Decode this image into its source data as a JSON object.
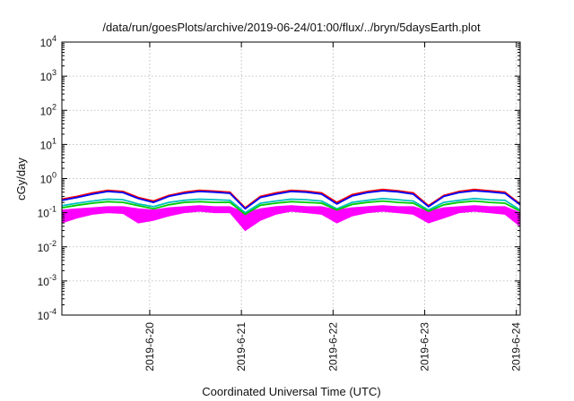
{
  "chart_data": {
    "type": "line",
    "title": "/data/run/goesPlots/archive/2019-06-24/01:00/flux/../bryn/5daysEarth.plot",
    "xlabel": "Coordinated Universal Time (UTC)",
    "ylabel": "cGy/day",
    "yscale": "log",
    "ylim": [
      0.0001,
      10000
    ],
    "xlim": [
      "2019-06-19T01:00",
      "2019-06-24T01:00"
    ],
    "grid": true,
    "legend": "none",
    "x_ticks": [
      {
        "value": "2019-06-20T00:00",
        "label": "2019-6-20"
      },
      {
        "value": "2019-06-21T00:00",
        "label": "2019-6-21"
      },
      {
        "value": "2019-06-22T00:00",
        "label": "2019-6-22"
      },
      {
        "value": "2019-06-23T00:00",
        "label": "2019-6-23"
      },
      {
        "value": "2019-06-24T00:00",
        "label": "2019-6-24"
      }
    ],
    "y_ticks": [
      {
        "value": 0.0001,
        "base": "10",
        "exp": "-4"
      },
      {
        "value": 0.001,
        "base": "10",
        "exp": "-3"
      },
      {
        "value": 0.01,
        "base": "10",
        "exp": "-2"
      },
      {
        "value": 0.1,
        "base": "10",
        "exp": "-1"
      },
      {
        "value": 1,
        "base": "10",
        "exp": "0"
      },
      {
        "value": 10,
        "base": "10",
        "exp": "1"
      },
      {
        "value": 100,
        "base": "10",
        "exp": "2"
      },
      {
        "value": 1000,
        "base": "10",
        "exp": "3"
      },
      {
        "value": 10000,
        "base": "10",
        "exp": "4"
      }
    ],
    "series": [
      {
        "color": "#ff00ff",
        "envelope": true,
        "x": [
          "2019-06-19T01:00",
          "2019-06-19T05:00",
          "2019-06-19T09:00",
          "2019-06-19T13:00",
          "2019-06-19T17:00",
          "2019-06-19T21:00",
          "2019-06-20T01:00",
          "2019-06-20T05:00",
          "2019-06-20T09:00",
          "2019-06-20T13:00",
          "2019-06-20T17:00",
          "2019-06-20T21:00",
          "2019-06-21T01:00",
          "2019-06-21T05:00",
          "2019-06-21T09:00",
          "2019-06-21T13:00",
          "2019-06-21T17:00",
          "2019-06-21T21:00",
          "2019-06-22T01:00",
          "2019-06-22T05:00",
          "2019-06-22T09:00",
          "2019-06-22T13:00",
          "2019-06-22T17:00",
          "2019-06-22T21:00",
          "2019-06-23T01:00",
          "2019-06-23T05:00",
          "2019-06-23T09:00",
          "2019-06-23T13:00",
          "2019-06-23T17:00",
          "2019-06-23T21:00",
          "2019-06-24T01:00"
        ],
        "lo": [
          0.05,
          0.07,
          0.09,
          0.1,
          0.095,
          0.05,
          0.06,
          0.08,
          0.1,
          0.11,
          0.1,
          0.1,
          0.03,
          0.06,
          0.09,
          0.11,
          0.1,
          0.09,
          0.05,
          0.08,
          0.1,
          0.11,
          0.1,
          0.09,
          0.05,
          0.07,
          0.1,
          0.11,
          0.1,
          0.09,
          0.04
        ],
        "hi": [
          0.12,
          0.13,
          0.14,
          0.15,
          0.15,
          0.13,
          0.12,
          0.14,
          0.15,
          0.16,
          0.15,
          0.15,
          0.1,
          0.13,
          0.15,
          0.16,
          0.15,
          0.15,
          0.12,
          0.14,
          0.15,
          0.16,
          0.15,
          0.15,
          0.11,
          0.14,
          0.15,
          0.16,
          0.15,
          0.15,
          0.1
        ]
      },
      {
        "color": "#ff0000",
        "x": [
          "2019-06-19T01:00",
          "2019-06-19T05:00",
          "2019-06-19T09:00",
          "2019-06-19T13:00",
          "2019-06-19T17:00",
          "2019-06-19T21:00",
          "2019-06-20T01:00",
          "2019-06-20T05:00",
          "2019-06-20T09:00",
          "2019-06-20T13:00",
          "2019-06-20T17:00",
          "2019-06-20T21:00",
          "2019-06-21T01:00",
          "2019-06-21T05:00",
          "2019-06-21T09:00",
          "2019-06-21T13:00",
          "2019-06-21T17:00",
          "2019-06-21T21:00",
          "2019-06-22T01:00",
          "2019-06-22T05:00",
          "2019-06-22T09:00",
          "2019-06-22T13:00",
          "2019-06-22T17:00",
          "2019-06-22T21:00",
          "2019-06-23T01:00",
          "2019-06-23T05:00",
          "2019-06-23T09:00",
          "2019-06-23T13:00",
          "2019-06-23T17:00",
          "2019-06-23T21:00",
          "2019-06-24T01:00"
        ],
        "y": [
          0.25,
          0.3,
          0.38,
          0.45,
          0.42,
          0.28,
          0.22,
          0.32,
          0.4,
          0.45,
          0.43,
          0.4,
          0.14,
          0.3,
          0.38,
          0.45,
          0.43,
          0.38,
          0.2,
          0.34,
          0.42,
          0.48,
          0.44,
          0.38,
          0.16,
          0.32,
          0.42,
          0.48,
          0.44,
          0.4,
          0.18
        ]
      },
      {
        "color": "#0000ff",
        "x": [
          "2019-06-19T01:00",
          "2019-06-19T05:00",
          "2019-06-19T09:00",
          "2019-06-19T13:00",
          "2019-06-19T17:00",
          "2019-06-19T21:00",
          "2019-06-20T01:00",
          "2019-06-20T05:00",
          "2019-06-20T09:00",
          "2019-06-20T13:00",
          "2019-06-20T17:00",
          "2019-06-20T21:00",
          "2019-06-21T01:00",
          "2019-06-21T05:00",
          "2019-06-21T09:00",
          "2019-06-21T13:00",
          "2019-06-21T17:00",
          "2019-06-21T21:00",
          "2019-06-22T01:00",
          "2019-06-22T05:00",
          "2019-06-22T09:00",
          "2019-06-22T13:00",
          "2019-06-22T17:00",
          "2019-06-22T21:00",
          "2019-06-23T01:00",
          "2019-06-23T05:00",
          "2019-06-23T09:00",
          "2019-06-23T13:00",
          "2019-06-23T17:00",
          "2019-06-23T21:00",
          "2019-06-24T01:00"
        ],
        "y": [
          0.23,
          0.28,
          0.35,
          0.42,
          0.39,
          0.26,
          0.2,
          0.3,
          0.37,
          0.42,
          0.4,
          0.37,
          0.13,
          0.28,
          0.35,
          0.42,
          0.4,
          0.35,
          0.18,
          0.31,
          0.39,
          0.44,
          0.41,
          0.35,
          0.15,
          0.3,
          0.39,
          0.44,
          0.41,
          0.37,
          0.17
        ]
      },
      {
        "color": "#00c0c0",
        "x": [
          "2019-06-19T01:00",
          "2019-06-19T05:00",
          "2019-06-19T09:00",
          "2019-06-19T13:00",
          "2019-06-19T17:00",
          "2019-06-19T21:00",
          "2019-06-20T01:00",
          "2019-06-20T05:00",
          "2019-06-20T09:00",
          "2019-06-20T13:00",
          "2019-06-20T17:00",
          "2019-06-20T21:00",
          "2019-06-21T01:00",
          "2019-06-21T05:00",
          "2019-06-21T09:00",
          "2019-06-21T13:00",
          "2019-06-21T17:00",
          "2019-06-21T21:00",
          "2019-06-22T01:00",
          "2019-06-22T05:00",
          "2019-06-22T09:00",
          "2019-06-22T13:00",
          "2019-06-22T17:00",
          "2019-06-22T21:00",
          "2019-06-23T01:00",
          "2019-06-23T05:00",
          "2019-06-23T09:00",
          "2019-06-23T13:00",
          "2019-06-23T17:00",
          "2019-06-23T21:00",
          "2019-06-24T01:00"
        ],
        "y": [
          0.16,
          0.19,
          0.22,
          0.25,
          0.24,
          0.18,
          0.15,
          0.2,
          0.23,
          0.25,
          0.24,
          0.23,
          0.1,
          0.19,
          0.22,
          0.25,
          0.24,
          0.22,
          0.13,
          0.2,
          0.23,
          0.26,
          0.24,
          0.22,
          0.12,
          0.2,
          0.23,
          0.26,
          0.24,
          0.23,
          0.12
        ]
      },
      {
        "color": "#00cc00",
        "x": [
          "2019-06-19T01:00",
          "2019-06-19T05:00",
          "2019-06-19T09:00",
          "2019-06-19T13:00",
          "2019-06-19T17:00",
          "2019-06-19T21:00",
          "2019-06-20T01:00",
          "2019-06-20T05:00",
          "2019-06-20T09:00",
          "2019-06-20T13:00",
          "2019-06-20T17:00",
          "2019-06-20T21:00",
          "2019-06-21T01:00",
          "2019-06-21T05:00",
          "2019-06-21T09:00",
          "2019-06-21T13:00",
          "2019-06-21T17:00",
          "2019-06-21T21:00",
          "2019-06-22T01:00",
          "2019-06-22T05:00",
          "2019-06-22T09:00",
          "2019-06-22T13:00",
          "2019-06-22T17:00",
          "2019-06-22T21:00",
          "2019-06-23T01:00",
          "2019-06-23T05:00",
          "2019-06-23T09:00",
          "2019-06-23T13:00",
          "2019-06-23T17:00",
          "2019-06-23T21:00",
          "2019-06-24T01:00"
        ],
        "y": [
          0.14,
          0.165,
          0.19,
          0.21,
          0.2,
          0.16,
          0.13,
          0.17,
          0.2,
          0.21,
          0.2,
          0.2,
          0.09,
          0.165,
          0.19,
          0.21,
          0.2,
          0.19,
          0.12,
          0.175,
          0.2,
          0.22,
          0.2,
          0.19,
          0.11,
          0.17,
          0.2,
          0.22,
          0.2,
          0.19,
          0.11
        ]
      }
    ]
  }
}
